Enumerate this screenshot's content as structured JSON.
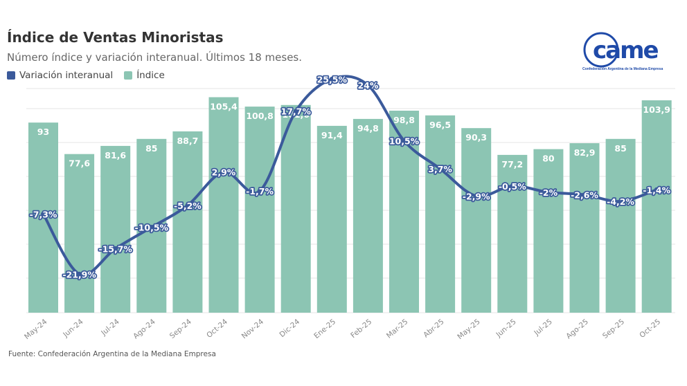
{
  "header": {
    "title": "Índice de Ventas Minoristas",
    "subtitle": "Número índice y variación interanual. Últimos 18 meses."
  },
  "legend": {
    "line_label": "Variación interanual",
    "bar_label": "Índice"
  },
  "logo": {
    "text": "came",
    "subtitle": "Confederación Argentina de la Mediana Empresa"
  },
  "source": "Fuente: Confederación Argentina de la Mediana Empresa",
  "colors": {
    "bar": "#8cc5b3",
    "line": "#3b5a9b",
    "grid": "#e6e6e6",
    "logo": "#1f4aa8"
  },
  "chart_data": {
    "type": "bar",
    "categories": [
      "May-24",
      "Jun-24",
      "Jul-24",
      "Ago-24",
      "Sep-24",
      "Oct-24",
      "Nov-24",
      "Dic-24",
      "Ene-25",
      "Feb-25",
      "Mar-25",
      "Abr-25",
      "May-25",
      "Jun-25",
      "Jul-25",
      "Ago-25",
      "Sep-25",
      "Oct-25"
    ],
    "series": [
      {
        "name": "Índice",
        "kind": "bar",
        "values": [
          93,
          77.6,
          81.6,
          85,
          88.7,
          105.4,
          100.8,
          101.6,
          91.4,
          94.8,
          98.8,
          96.5,
          90.3,
          77.2,
          80,
          82.9,
          85,
          103.9
        ],
        "labels": [
          "93",
          "77,6",
          "81,6",
          "85",
          "88,7",
          "105,4",
          "100,8",
          "101,6",
          "91,4",
          "94,8",
          "98,8",
          "96,5",
          "90,3",
          "77,2",
          "80",
          "82,9",
          "85",
          "103,9"
        ]
      },
      {
        "name": "Variación interanual",
        "kind": "line",
        "values": [
          -7.3,
          -21.9,
          -15.7,
          -10.5,
          -5.2,
          2.9,
          -1.7,
          17.7,
          25.5,
          24,
          10.5,
          3.7,
          -2.9,
          -0.5,
          -2,
          -2.6,
          -4.2,
          -1.4
        ],
        "labels": [
          "-7,3%",
          "-21,9%",
          "-15,7%",
          "-10,5%",
          "-5,2%",
          "2,9%",
          "-1,7%",
          "17,7%",
          "25,5%",
          "24%",
          "10,5%",
          "3,7%",
          "-2,9%",
          "-0,5%",
          "-2%",
          "-2,6%",
          "-4,2%",
          "-1,4%"
        ]
      }
    ],
    "grid": true,
    "legend_position": "top-left"
  }
}
